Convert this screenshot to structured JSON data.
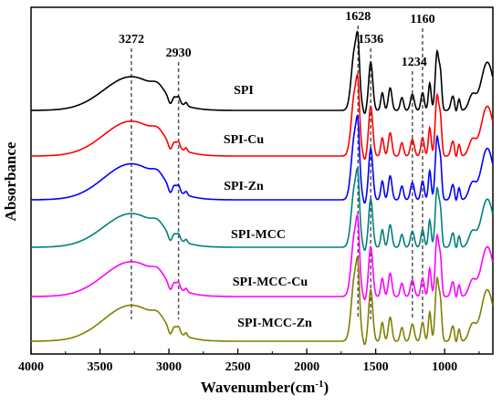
{
  "chart_data": {
    "type": "line",
    "title": "",
    "xlabel_main": "Wavenumber(cm",
    "xlabel_sup": "-1",
    "xlabel_close": ")",
    "ylabel": "Absorbance",
    "xlim": [
      4000,
      650
    ],
    "x_reversed": true,
    "x_ticks": [
      "4000",
      "3500",
      "3000",
      "2500",
      "2000",
      "1500",
      "1000"
    ],
    "y_ticks": [],
    "peaks": [
      {
        "wavenumber": 3272,
        "label": "3272"
      },
      {
        "wavenumber": 2930,
        "label": "2930"
      },
      {
        "wavenumber": 1628,
        "label": "1628"
      },
      {
        "wavenumber": 1536,
        "label": "1536"
      },
      {
        "wavenumber": 1234,
        "label": "1234"
      },
      {
        "wavenumber": 1160,
        "label": "1160"
      }
    ],
    "series": [
      {
        "name": "SPI",
        "color": "#000000",
        "offset": 5
      },
      {
        "name": "SPI-Cu",
        "color": "#ff0000",
        "offset": 4
      },
      {
        "name": "SPI-Zn",
        "color": "#0000ff",
        "offset": 3
      },
      {
        "name": "SPI-MCC",
        "color": "#008080",
        "offset": 2
      },
      {
        "name": "SPI-MCC-Cu",
        "color": "#ff00ff",
        "offset": 1
      },
      {
        "name": "SPI-MCC-Zn",
        "color": "#808000",
        "offset": 0
      }
    ]
  }
}
